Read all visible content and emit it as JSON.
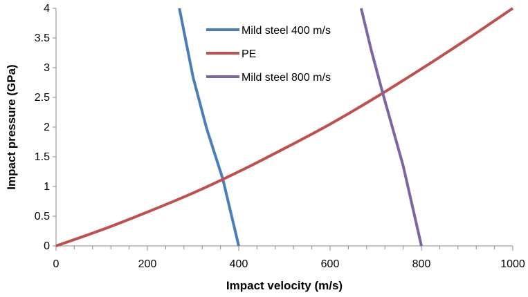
{
  "chart_data": {
    "type": "line",
    "title": "",
    "xlabel": "Impact velocity (m/s)",
    "ylabel": "Impact pressure (GPa)",
    "xlim": [
      0,
      1000
    ],
    "ylim": [
      0,
      4
    ],
    "x_ticks": [
      0,
      200,
      400,
      600,
      800,
      1000
    ],
    "y_ticks": [
      0,
      0.5,
      1,
      1.5,
      2,
      2.5,
      3,
      3.5,
      4
    ],
    "x_tick_labels": [
      "0",
      "200",
      "400",
      "600",
      "800",
      "1000"
    ],
    "y_tick_labels": [
      "0",
      "0.5",
      "1",
      "1.5",
      "2",
      "2.5",
      "3",
      "3.5",
      "4"
    ],
    "grid": false,
    "legend_position": "top-center",
    "series": [
      {
        "name": "Mild steel 400 m/s",
        "color": "#4a7ebb",
        "x": [
          270,
          300,
          330,
          365,
          400
        ],
        "y": [
          4.0,
          2.84,
          1.97,
          1.13,
          0
        ]
      },
      {
        "name": "PE",
        "color": "#c0504d",
        "x": [
          0,
          100,
          200,
          300,
          400,
          500,
          600,
          700,
          800,
          900,
          1000
        ],
        "y": [
          0,
          0.27,
          0.57,
          0.89,
          1.25,
          1.64,
          2.05,
          2.5,
          2.98,
          3.48,
          4.0
        ]
      },
      {
        "name": "Mild steel 800 m/s",
        "color": "#8064a2",
        "x": [
          668,
          690,
          715,
          760,
          800
        ],
        "y": [
          4.0,
          3.3,
          2.58,
          1.35,
          0
        ]
      }
    ]
  }
}
